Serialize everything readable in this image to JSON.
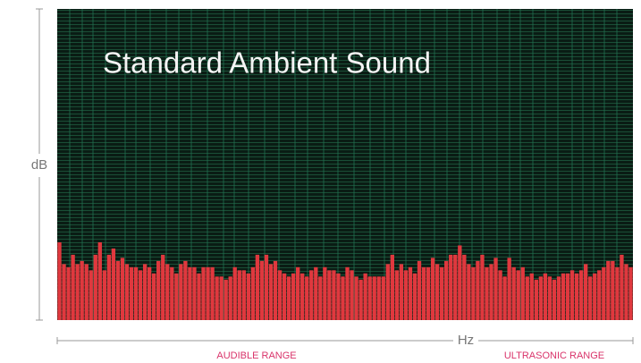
{
  "chart_data": {
    "type": "bar",
    "title": "Standard Ambient Sound",
    "y_label": "dB",
    "x_label": "Hz",
    "annotations": [
      "AUDIBLE RANGE",
      "ULTRASONIC RANGE"
    ],
    "color": "#e0383e",
    "ylim": [
      0,
      100
    ],
    "values": [
      25,
      18,
      17,
      21,
      18,
      19,
      18,
      16,
      21,
      25,
      16,
      21,
      23,
      19,
      20,
      18,
      17,
      17,
      16,
      18,
      17,
      15,
      19,
      21,
      18,
      17,
      15,
      18,
      19,
      17,
      17,
      15,
      17,
      17,
      17,
      14,
      14,
      13,
      14,
      17,
      16,
      16,
      15,
      17,
      21,
      19,
      21,
      18,
      19,
      16,
      15,
      14,
      15,
      17,
      15,
      14,
      16,
      17,
      14,
      17,
      16,
      16,
      15,
      14,
      17,
      16,
      14,
      13,
      15,
      14,
      14,
      14,
      14,
      18,
      21,
      16,
      18,
      16,
      17,
      15,
      19,
      17,
      17,
      20,
      18,
      17,
      19,
      21,
      21,
      24,
      21,
      18,
      17,
      19,
      21,
      17,
      18,
      20,
      16,
      14,
      20,
      17,
      16,
      17,
      14,
      15,
      13,
      14,
      15,
      14,
      13,
      14,
      15,
      15,
      16,
      15,
      16,
      18,
      14,
      15,
      16,
      17,
      19,
      19,
      17,
      21,
      18,
      17
    ]
  }
}
